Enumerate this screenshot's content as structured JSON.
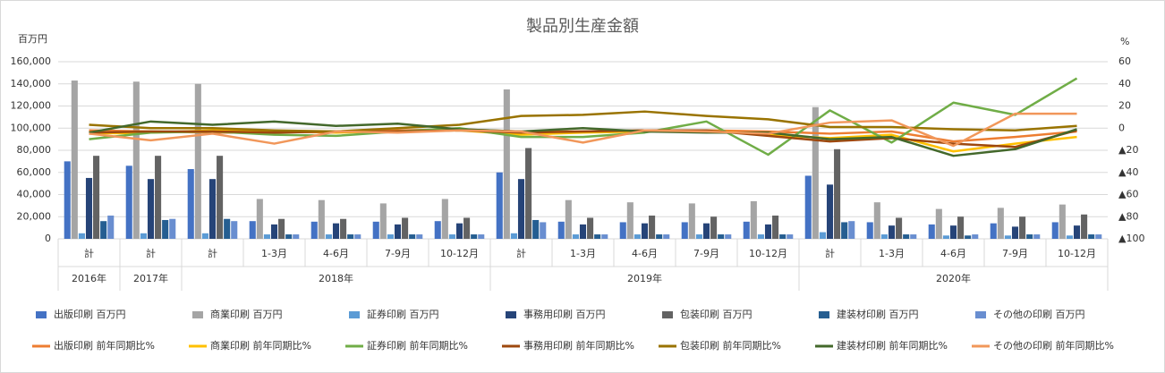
{
  "chart_data": {
    "type": "bar_line",
    "title": "製品別生産金額",
    "ylabel": "百万円",
    "y2label": "%",
    "categories": [
      "計",
      "計",
      "計",
      "1-3月",
      "4-6月",
      "7-9月",
      "10-12月",
      "計",
      "1-3月",
      "4-6月",
      "7-9月",
      "10-12月",
      "計",
      "1-3月",
      "4-6月",
      "7-9月",
      "10-12月"
    ],
    "x_groups": [
      "2016年",
      "2017年",
      "2018年",
      null,
      null,
      null,
      null,
      "2019年",
      null,
      null,
      null,
      null,
      "2020年",
      null,
      null,
      null,
      null
    ],
    "ylim": [
      0,
      160000
    ],
    "yticks": [
      0,
      {
        "value": 20000,
        "label": "20,000"
      },
      {
        "value": 40000,
        "label": "40,000"
      },
      {
        "value": 60000,
        "label": "60,000"
      },
      {
        "value": 80000,
        "label": "80,000"
      },
      {
        "value": 100000,
        "label": "100,000"
      },
      {
        "value": 120000,
        "label": "120,000"
      },
      {
        "value": 140000,
        "label": "140,000"
      },
      {
        "value": 160000,
        "label": "160,000"
      }
    ],
    "y2lim": [
      -100,
      60
    ],
    "y2ticks": [
      60,
      40,
      20,
      0,
      {
        "value": -20,
        "label": "▲20"
      },
      {
        "value": -40,
        "label": "▲40"
      },
      {
        "value": -60,
        "label": "▲60"
      },
      {
        "value": -80,
        "label": "▲80"
      },
      {
        "value": -100,
        "label": "▲100"
      }
    ],
    "grid": true,
    "series": [
      {
        "name": "出版印刷 百万円",
        "kind": "bar",
        "color": "#4472c4",
        "values": [
          70000,
          66000,
          63000,
          16000,
          15500,
          15500,
          16000,
          60000,
          15500,
          15000,
          15000,
          15500,
          57000,
          15000,
          13000,
          14000,
          15000
        ]
      },
      {
        "name": "商業印刷 百万円",
        "kind": "bar",
        "color": "#a5a5a5",
        "values": [
          143000,
          142000,
          140000,
          36000,
          35000,
          32000,
          36000,
          135000,
          35000,
          33000,
          32000,
          34000,
          119000,
          33000,
          27000,
          28000,
          31000
        ]
      },
      {
        "name": "証券印刷 百万円",
        "kind": "bar",
        "color": "#5b9bd5",
        "values": [
          5000,
          5000,
          5000,
          4000,
          4000,
          4000,
          4000,
          5000,
          4000,
          4000,
          4000,
          4000,
          6000,
          4000,
          3000,
          3000,
          3000
        ]
      },
      {
        "name": "事務用印刷 百万円",
        "kind": "bar",
        "color": "#264478",
        "values": [
          55000,
          54000,
          54000,
          13000,
          14000,
          13000,
          14000,
          54000,
          13000,
          14000,
          14000,
          13000,
          49000,
          12000,
          12000,
          11000,
          12000
        ]
      },
      {
        "name": "包装印刷 百万円",
        "kind": "bar",
        "color": "#636363",
        "values": [
          75000,
          75000,
          75000,
          18000,
          18000,
          19000,
          19000,
          82000,
          19000,
          21000,
          20000,
          21000,
          81000,
          19000,
          20000,
          20000,
          22000
        ]
      },
      {
        "name": "建装材印刷 百万円",
        "kind": "bar",
        "color": "#255e91",
        "values": [
          16000,
          17000,
          18000,
          4000,
          4000,
          4000,
          4000,
          17000,
          4000,
          4000,
          4000,
          4000,
          15000,
          4000,
          3000,
          4000,
          4000
        ]
      },
      {
        "name": "その他の印刷 百万円",
        "kind": "bar",
        "color": "#698ed0",
        "values": [
          21000,
          18000,
          16000,
          4000,
          4000,
          4000,
          4000,
          15000,
          4000,
          4000,
          4000,
          4000,
          16000,
          4000,
          4000,
          4000,
          4000
        ]
      },
      {
        "name": "出版印刷 前年同期比%",
        "kind": "line",
        "axis": "y2",
        "color": "#ed7d31",
        "values": [
          -2,
          -3,
          -4,
          -4,
          -3,
          -2,
          -1,
          -3,
          -3,
          -2,
          -2,
          -3,
          -5,
          -3,
          -12,
          -8,
          -3
        ]
      },
      {
        "name": "商業印刷 前年同期比%",
        "kind": "line",
        "axis": "y2",
        "color": "#ffc000",
        "values": [
          -5,
          -4,
          -2,
          -3,
          -4,
          -3,
          -2,
          -6,
          -4,
          -3,
          -2,
          -6,
          -9,
          -6,
          -21,
          -14,
          -8
        ]
      },
      {
        "name": "証券印刷 前年同期比%",
        "kind": "line",
        "axis": "y2",
        "color": "#70ad47",
        "values": [
          -10,
          -4,
          -3,
          -6,
          -7,
          -3,
          0,
          -8,
          -8,
          -4,
          6,
          -24,
          16,
          -13,
          23,
          12,
          45
        ]
      },
      {
        "name": "事務用印刷 前年同期比%",
        "kind": "line",
        "axis": "y2",
        "color": "#9e480e",
        "values": [
          -4,
          -3,
          -3,
          -4,
          -3,
          -3,
          -2,
          -4,
          -3,
          -2,
          -2,
          -7,
          -12,
          -9,
          -14,
          -17,
          -2
        ]
      },
      {
        "name": "包装印刷 前年同期比%",
        "kind": "line",
        "axis": "y2",
        "color": "#997300",
        "values": [
          3,
          0,
          0,
          -2,
          -3,
          0,
          3,
          11,
          12,
          15,
          11,
          8,
          1,
          1,
          -1,
          -2,
          2
        ]
      },
      {
        "name": "建装材印刷 前年同期比%",
        "kind": "line",
        "axis": "y2",
        "color": "#43682b",
        "values": [
          -4,
          6,
          3,
          6,
          2,
          4,
          -1,
          -3,
          0,
          -3,
          -4,
          -4,
          -10,
          -8,
          -25,
          -19,
          -1
        ]
      },
      {
        "name": "その他の印刷 前年同期比%",
        "kind": "line",
        "axis": "y2",
        "color": "#f1975a",
        "values": [
          -5,
          -11,
          -5,
          -14,
          -3,
          -4,
          -2,
          -3,
          -13,
          -2,
          -3,
          -5,
          5,
          7,
          -16,
          13,
          13
        ]
      }
    ]
  }
}
